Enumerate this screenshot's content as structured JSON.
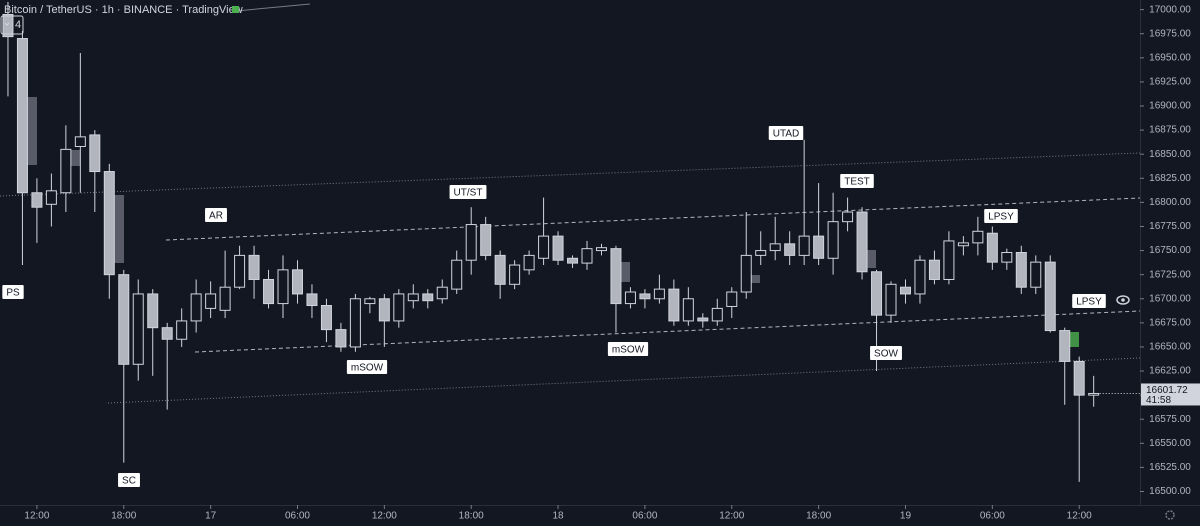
{
  "chart_data": {
    "type": "candlestick",
    "title": "Bitcoin / TetherUS · 1h · BINANCE · TradingView",
    "indicator_count": "4",
    "countdown": "41:58",
    "x": [
      0,
      1,
      2,
      3,
      4,
      5,
      6,
      7,
      8,
      9,
      10,
      11,
      12,
      13,
      14,
      15,
      16,
      17,
      18,
      19,
      20,
      21,
      22,
      23,
      24,
      25,
      26,
      27,
      28,
      29,
      30,
      31,
      32,
      33,
      34,
      35,
      36,
      37,
      38,
      39,
      40,
      41,
      42,
      43,
      44,
      45,
      46,
      47,
      48,
      49,
      50,
      51,
      52,
      53,
      54,
      55,
      56,
      57,
      58,
      59,
      60,
      61,
      62,
      63,
      64,
      65,
      66,
      67,
      68,
      69,
      70,
      71,
      72,
      73,
      74,
      75
    ],
    "xlim": [
      -0.55,
      78.2
    ],
    "xticks": [
      {
        "value": 2,
        "label": "12:00"
      },
      {
        "value": 8,
        "label": "18:00"
      },
      {
        "value": 14,
        "label": "17"
      },
      {
        "value": 20,
        "label": "06:00"
      },
      {
        "value": 26,
        "label": "12:00"
      },
      {
        "value": 32,
        "label": "18:00"
      },
      {
        "value": 38,
        "label": "18"
      },
      {
        "value": 44,
        "label": "06:00"
      },
      {
        "value": 50,
        "label": "12:00"
      },
      {
        "value": 56,
        "label": "18:00"
      },
      {
        "value": 62,
        "label": "19"
      },
      {
        "value": 68,
        "label": "06:00"
      },
      {
        "value": 74,
        "label": "12:00"
      }
    ],
    "ylim": [
      16486,
      17010
    ],
    "yticks": [
      {
        "value": 16500,
        "label": "16500.00"
      },
      {
        "value": 16525,
        "label": "16525.00"
      },
      {
        "value": 16550,
        "label": "16550.00"
      },
      {
        "value": 16575,
        "label": "16575.00"
      },
      {
        "value": 16600,
        "label": "16600.00"
      },
      {
        "value": 16625,
        "label": "16625.00"
      },
      {
        "value": 16650,
        "label": "16650.00"
      },
      {
        "value": 16675,
        "label": "16675.00"
      },
      {
        "value": 16700,
        "label": "16700.00"
      },
      {
        "value": 16725,
        "label": "16725.00"
      },
      {
        "value": 16750,
        "label": "16750.00"
      },
      {
        "value": 16775,
        "label": "16775.00"
      },
      {
        "value": 16800,
        "label": "16800.00"
      },
      {
        "value": 16825,
        "label": "16825.00"
      },
      {
        "value": 16850,
        "label": "16850.00"
      },
      {
        "value": 16875,
        "label": "16875.00"
      },
      {
        "value": 16900,
        "label": "16900.00"
      },
      {
        "value": 16925,
        "label": "16925.00"
      },
      {
        "value": 16950,
        "label": "16950.00"
      },
      {
        "value": 16975,
        "label": "16975.00"
      },
      {
        "value": 17000,
        "label": "17000.00"
      }
    ],
    "series": [
      {
        "color": "#d1d4dc",
        "down_color": "#b2b5be",
        "open": [
          16995,
          16970,
          16810,
          16798,
          16810,
          16858,
          16870,
          16832,
          16725,
          16632,
          16705,
          16670,
          16658,
          16677,
          16690,
          16688,
          16712,
          16745,
          16720,
          16695,
          16730,
          16705,
          16693,
          16668,
          16650,
          16695,
          16700,
          16677,
          16698,
          16705,
          16700,
          16710,
          16740,
          16777,
          16745,
          16715,
          16730,
          16742,
          16765,
          16742,
          16737,
          16750,
          16752,
          16695,
          16705,
          16700,
          16710,
          16677,
          16680,
          16677,
          16692,
          16707,
          16745,
          16750,
          16757,
          16745,
          16765,
          16742,
          16780,
          16790,
          16728,
          16683,
          16712,
          16705,
          16740,
          16720,
          16755,
          16758,
          16768,
          16738,
          16748,
          16712,
          16738,
          16667,
          16635,
          16600
        ],
        "high": [
          17008,
          16978,
          16825,
          16830,
          16880,
          16955,
          16875,
          16840,
          16730,
          16720,
          16710,
          16675,
          16690,
          16720,
          16718,
          16750,
          16755,
          16755,
          16730,
          16745,
          16740,
          16715,
          16700,
          16675,
          16705,
          16702,
          16705,
          16710,
          16715,
          16710,
          16720,
          16750,
          16795,
          16785,
          16750,
          16740,
          16750,
          16805,
          16770,
          16745,
          16760,
          16757,
          16755,
          16712,
          16710,
          16725,
          16720,
          16712,
          16685,
          16700,
          16712,
          16790,
          16770,
          16785,
          16770,
          16865,
          16820,
          16810,
          16805,
          16795,
          16730,
          16718,
          16720,
          16745,
          16750,
          16770,
          16765,
          16785,
          16775,
          16752,
          16755,
          16745,
          16745,
          16670,
          16640,
          16620
        ],
        "low": [
          16910,
          16735,
          16758,
          16775,
          16790,
          16810,
          16790,
          16700,
          16530,
          16615,
          16620,
          16585,
          16650,
          16665,
          16680,
          16680,
          16710,
          16700,
          16690,
          16680,
          16695,
          16680,
          16655,
          16645,
          16645,
          16685,
          16650,
          16670,
          16690,
          16690,
          16695,
          16705,
          16725,
          16740,
          16700,
          16710,
          16725,
          16735,
          16735,
          16732,
          16730,
          16745,
          16665,
          16690,
          16690,
          16695,
          16672,
          16672,
          16670,
          16672,
          16680,
          16700,
          16735,
          16740,
          16735,
          16735,
          16735,
          16725,
          16770,
          16720,
          16625,
          16675,
          16695,
          16695,
          16715,
          16715,
          16745,
          16745,
          16730,
          16730,
          16705,
          16705,
          16665,
          16590,
          16510,
          16588
        ],
        "close": [
          16972,
          16810,
          16795,
          16812,
          16855,
          16868,
          16832,
          16725,
          16632,
          16705,
          16670,
          16658,
          16677,
          16705,
          16705,
          16712,
          16745,
          16720,
          16695,
          16730,
          16705,
          16693,
          16668,
          16650,
          16700,
          16700,
          16677,
          16705,
          16705,
          16698,
          16712,
          16740,
          16777,
          16745,
          16715,
          16735,
          16745,
          16765,
          16740,
          16737,
          16752,
          16753,
          16695,
          16707,
          16700,
          16710,
          16677,
          16700,
          16677,
          16690,
          16707,
          16745,
          16750,
          16757,
          16745,
          16765,
          16742,
          16780,
          16790,
          16728,
          16683,
          16715,
          16705,
          16740,
          16720,
          16760,
          16758,
          16770,
          16738,
          16748,
          16712,
          16738,
          16667,
          16635,
          16600,
          16601.72
        ]
      }
    ],
    "annotations": [
      "PS",
      "SC",
      "AR",
      "mSOW",
      "UT/ST",
      "mSOW",
      "UTAD",
      "TEST",
      "SOW",
      "LPSY",
      "LPSY"
    ]
  }
}
